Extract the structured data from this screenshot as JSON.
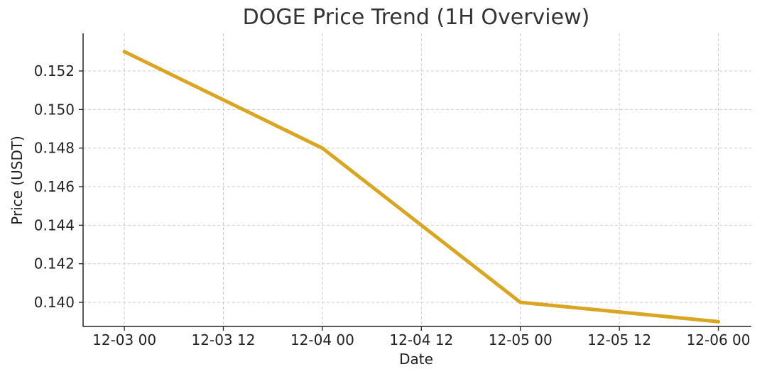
{
  "chart_data": {
    "type": "line",
    "title": "DOGE Price Trend (1H Overview)",
    "xlabel": "Date",
    "ylabel": "Price (USDT)",
    "x_ticks": [
      "12-03 00",
      "12-03 12",
      "12-04 00",
      "12-04 12",
      "12-05 00",
      "12-05 12",
      "12-06 00"
    ],
    "y_ticks": [
      "0.140",
      "0.142",
      "0.144",
      "0.146",
      "0.148",
      "0.150",
      "0.152"
    ],
    "xlim": [
      "2024-12-02 19:00",
      "2024-12-06 04:00"
    ],
    "ylim": [
      0.13875,
      0.15395
    ],
    "grid": true,
    "series": [
      {
        "color": "#DAA520",
        "x": [
          "2024-12-03 00:00",
          "2024-12-04 00:00",
          "2024-12-05 00:00",
          "2024-12-06 00:00"
        ],
        "y": [
          0.153,
          0.148,
          0.14,
          0.139
        ]
      }
    ]
  }
}
